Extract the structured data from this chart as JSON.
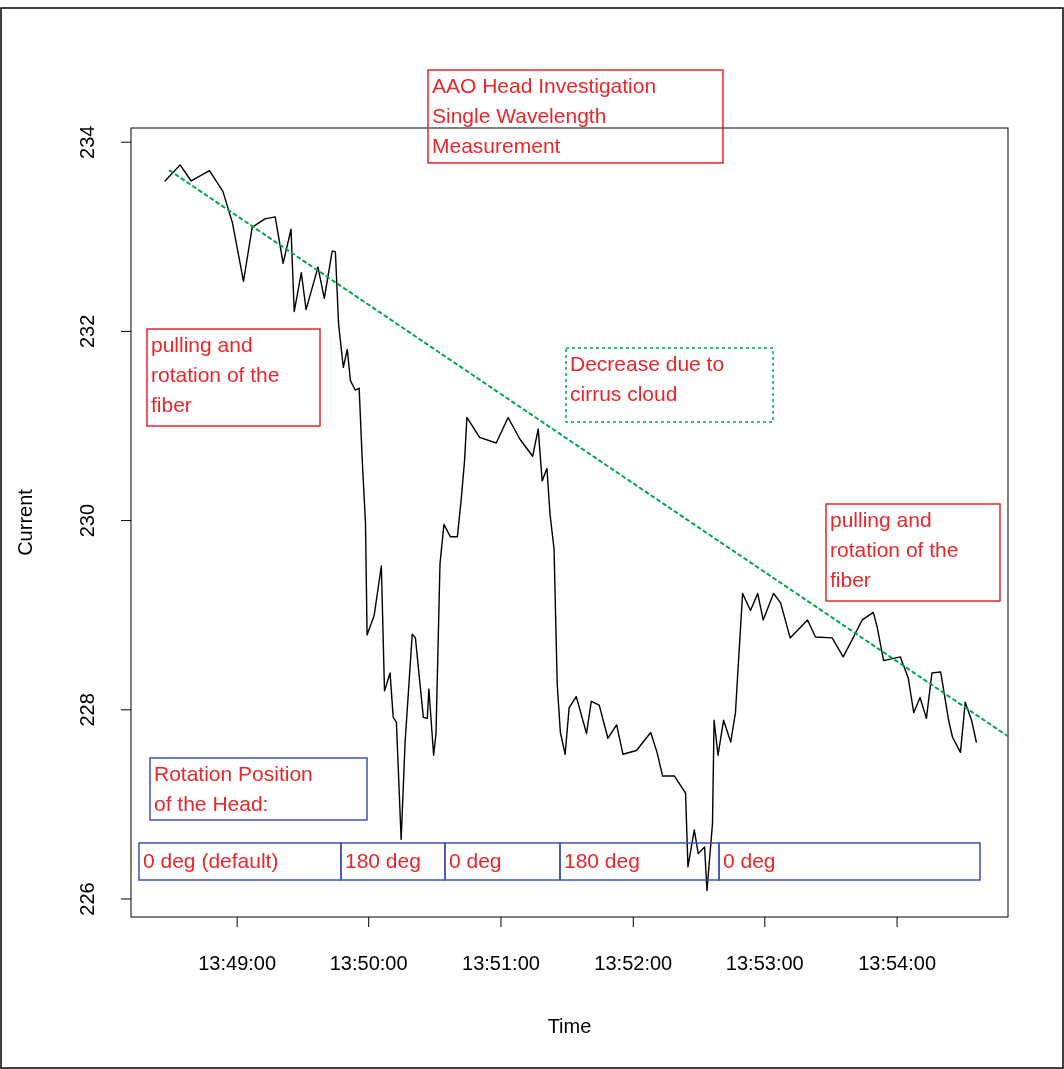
{
  "chart_data": {
    "type": "line",
    "title": "AAO Head Investigation\nSingle Wavelength\nMeasurement",
    "xlabel": "Time",
    "ylabel": "Current",
    "xlim": [
      13.8033,
      13.914
    ],
    "ylim": [
      225.81,
      234.15
    ],
    "xticks": [
      {
        "value": 13.8167,
        "label": "13:49:00"
      },
      {
        "value": 13.8333,
        "label": "13:50:00"
      },
      {
        "value": 13.85,
        "label": "13:51:00"
      },
      {
        "value": 13.8667,
        "label": "13:52:00"
      },
      {
        "value": 13.8833,
        "label": "13:53:00"
      },
      {
        "value": 13.9,
        "label": "13:54:00"
      }
    ],
    "yticks": [
      226,
      228,
      230,
      232,
      234
    ],
    "grid": false,
    "series": [
      {
        "color": "#000000",
        "line_style": "solid",
        "x": [
          13.8076,
          13.8095,
          13.8109,
          13.8132,
          13.8149,
          13.8161,
          13.8175,
          13.8186,
          13.8202,
          13.8215,
          13.8225,
          13.8235,
          13.8239,
          13.8248,
          13.8254,
          13.8269,
          13.8277,
          13.8287,
          13.8291,
          13.8295,
          13.8301,
          13.8306,
          13.831,
          13.8316,
          13.8321,
          13.8325,
          13.8329,
          13.8331,
          13.834,
          13.8349,
          13.8353,
          13.836,
          13.8364,
          13.8368,
          13.8374,
          13.8379,
          13.8388,
          13.8392,
          13.8402,
          13.8407,
          13.8409,
          13.8415,
          13.8418,
          13.8423,
          13.8428,
          13.8436,
          13.8445,
          13.845,
          13.8454,
          13.8457,
          13.8473,
          13.8494,
          13.8509,
          13.8524,
          13.854,
          13.8547,
          13.8552,
          13.8558,
          13.8562,
          13.8567,
          13.8571,
          13.8575,
          13.8581,
          13.8586,
          13.8595,
          13.8608,
          13.8614,
          13.8624,
          13.8635,
          13.8646,
          13.8654,
          13.8671,
          13.8689,
          13.8697,
          13.8704,
          13.8719,
          13.8733,
          13.8736,
          13.8744,
          13.8749,
          13.8757,
          13.876,
          13.8767,
          13.8769,
          13.8774,
          13.8781,
          13.879,
          13.8796,
          13.8798,
          13.8805,
          13.8815,
          13.8824,
          13.8831,
          13.8844,
          13.8853,
          13.8865,
          13.8887,
          13.8897,
          13.8918,
          13.8932,
          13.8945,
          13.8956,
          13.897,
          13.8975,
          13.8983,
          13.9004,
          13.9014,
          13.9021,
          13.9029,
          13.9037,
          13.9044,
          13.9055,
          13.9065,
          13.907,
          13.908,
          13.9086,
          13.9094,
          13.91
        ],
        "values": [
          233.59,
          233.76,
          233.59,
          233.7,
          233.48,
          233.15,
          232.53,
          233.1,
          233.19,
          233.21,
          232.72,
          233.08,
          232.21,
          232.62,
          232.23,
          232.68,
          232.35,
          232.85,
          232.84,
          232.08,
          231.62,
          231.81,
          231.48,
          231.38,
          231.4,
          230.62,
          229.97,
          228.79,
          229.0,
          229.52,
          228.2,
          228.39,
          227.92,
          227.87,
          226.63,
          227.66,
          228.8,
          228.76,
          227.92,
          227.91,
          228.22,
          227.52,
          227.75,
          229.54,
          229.96,
          229.83,
          229.83,
          230.24,
          230.63,
          231.09,
          230.88,
          230.82,
          231.09,
          230.86,
          230.68,
          230.97,
          230.42,
          230.55,
          230.06,
          229.7,
          228.27,
          227.76,
          227.53,
          228.02,
          228.14,
          227.75,
          228.09,
          228.05,
          227.7,
          227.84,
          227.53,
          227.57,
          227.76,
          227.55,
          227.3,
          227.3,
          227.12,
          226.34,
          226.73,
          226.48,
          226.55,
          226.09,
          226.8,
          227.89,
          227.52,
          227.89,
          227.66,
          227.97,
          228.26,
          229.23,
          229.05,
          229.23,
          228.95,
          229.23,
          229.13,
          228.76,
          228.95,
          228.77,
          228.76,
          228.56,
          228.77,
          228.95,
          229.03,
          228.87,
          228.52,
          228.56,
          228.34,
          227.97,
          228.13,
          227.91,
          228.39,
          228.4,
          227.89,
          227.71,
          227.55,
          228.08,
          227.89,
          227.66
        ]
      },
      {
        "type": "line",
        "color": "#00a651",
        "line_style": "dotted",
        "x": [
          13.8082,
          13.914
        ],
        "values": [
          233.7,
          227.72
        ]
      }
    ],
    "annotations": [
      "pulling and\nrotation of the\nfiber",
      "Decrease due to\ncirrus cloud",
      "pulling and\nrotation of the\nfiber",
      "Rotation Position\nof the Head:",
      "0 deg (default)",
      "180 deg",
      "0 deg",
      "180 deg",
      "0 deg"
    ]
  }
}
